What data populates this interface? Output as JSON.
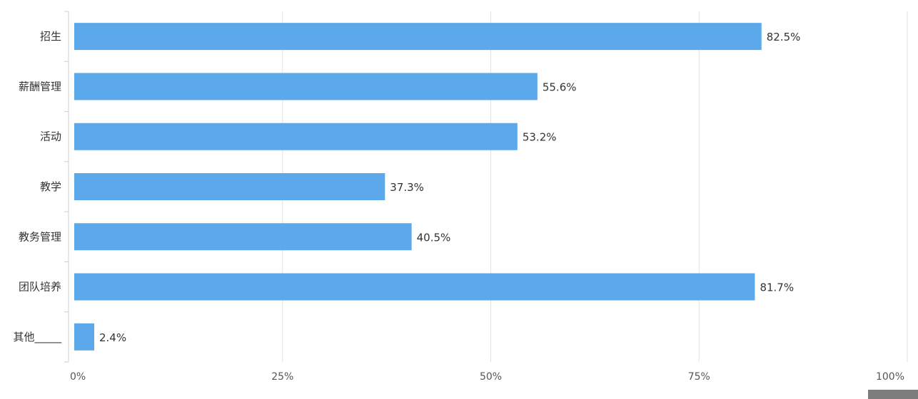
{
  "chart_data": {
    "type": "bar",
    "orientation": "horizontal",
    "categories": [
      "招生",
      "薪酬管理",
      "活动",
      "教学",
      "教务管理",
      "团队培养",
      "其他_____"
    ],
    "values": [
      82.5,
      55.6,
      53.2,
      37.3,
      40.5,
      81.7,
      2.4
    ],
    "data_labels": [
      "82.5%",
      "55.6%",
      "53.2%",
      "37.3%",
      "40.5%",
      "81.7%",
      "2.4%"
    ],
    "x_ticks": [
      0,
      25,
      50,
      75,
      100
    ],
    "x_tick_labels": [
      "0%",
      "25%",
      "50%",
      "75%",
      "100%"
    ],
    "xlim": [
      0,
      100
    ],
    "grid": true,
    "legend": "none",
    "bar_color": "#5ba8ea",
    "title": "",
    "xlabel": "",
    "ylabel": ""
  }
}
